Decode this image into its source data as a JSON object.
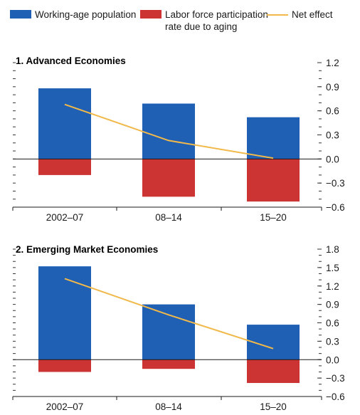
{
  "legend": [
    {
      "label": "Working-age population",
      "color": "#1f5fb4",
      "kind": "bar"
    },
    {
      "label": "Labor force participation rate due to aging",
      "color": "#cc3333",
      "kind": "bar"
    },
    {
      "label": "Net effect",
      "color": "#f0b94a",
      "kind": "line"
    }
  ],
  "chart_data": [
    {
      "type": "bar",
      "title": "1. Advanced Economies",
      "categories": [
        "2002–07",
        "08–14",
        "15–20"
      ],
      "series": [
        {
          "name": "Working-age population",
          "values": [
            0.88,
            0.69,
            0.52
          ],
          "color": "#1f5fb4"
        },
        {
          "name": "Labor force participation rate due to aging",
          "values": [
            -0.2,
            -0.47,
            -0.53
          ],
          "color": "#cc3333"
        },
        {
          "name": "Net effect",
          "values": [
            0.68,
            0.23,
            0.01
          ],
          "color": "#f0b94a",
          "kind": "line"
        }
      ],
      "ylim": [
        -0.6,
        1.2
      ],
      "yticks": [
        1.2,
        0.9,
        0.6,
        0.3,
        0.0,
        -0.3,
        -0.6
      ],
      "yticklabels": [
        "1.2",
        "0.9",
        "0.6",
        "0.3",
        "0.0",
        "−0.3",
        "−0.6"
      ]
    },
    {
      "type": "bar",
      "title": "2. Emerging Market Economies",
      "categories": [
        "2002–07",
        "08–14",
        "15–20"
      ],
      "series": [
        {
          "name": "Working-age population",
          "values": [
            1.52,
            0.9,
            0.57
          ],
          "color": "#1f5fb4"
        },
        {
          "name": "Labor force participation rate due to aging",
          "values": [
            -0.2,
            -0.15,
            -0.38
          ],
          "color": "#cc3333"
        },
        {
          "name": "Net effect",
          "values": [
            1.32,
            0.73,
            0.18
          ],
          "color": "#f0b94a",
          "kind": "line"
        }
      ],
      "ylim": [
        -0.6,
        1.8
      ],
      "yticks": [
        1.8,
        1.5,
        1.2,
        0.9,
        0.6,
        0.3,
        0.0,
        -0.3,
        -0.6
      ],
      "yticklabels": [
        "1.8",
        "1.5",
        "1.2",
        "0.9",
        "0.6",
        "0.3",
        "0.0",
        "−0.3",
        "−0.6"
      ]
    }
  ]
}
